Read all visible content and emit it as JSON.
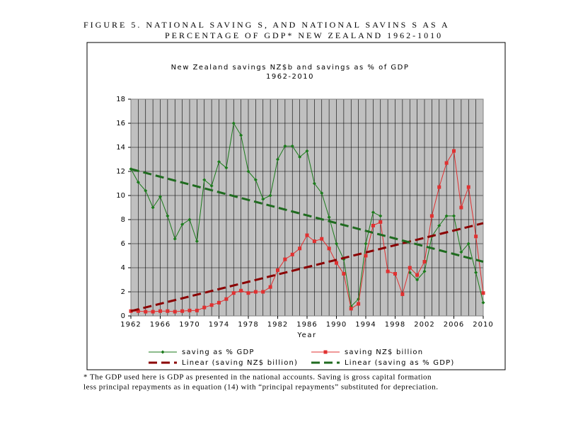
{
  "figure": {
    "caption": [
      "FIGURE 5.     NATIONAL SAVING S, AND NATIONAL SAVINS S AS A",
      "PERCENTAGE OF GDP* NEW ZEALAND 1962-1010"
    ],
    "footnote": [
      "* The GDP used here is GDP as presented in the national accounts. Saving is gross capital formation",
      "less principal repayments as in equation (14) with “principal repayments” substituted for depreciation."
    ]
  },
  "chart_data": {
    "type": "line",
    "title": [
      "New Zealand savings NZ$b and savings as % of GDP",
      "1962-2010"
    ],
    "x_label": "Year",
    "x": [
      1962,
      1963,
      1964,
      1965,
      1966,
      1967,
      1968,
      1969,
      1970,
      1971,
      1972,
      1973,
      1974,
      1975,
      1976,
      1977,
      1978,
      1979,
      1980,
      1981,
      1982,
      1983,
      1984,
      1985,
      1986,
      1987,
      1988,
      1989,
      1990,
      1991,
      1992,
      1993,
      1994,
      1995,
      1996,
      1997,
      1998,
      1999,
      2000,
      2001,
      2002,
      2003,
      2004,
      2005,
      2006,
      2007,
      2008,
      2009,
      2010
    ],
    "xlim": [
      1962,
      2010
    ],
    "xticks": [
      1962,
      1966,
      1970,
      1974,
      1978,
      1982,
      1986,
      1990,
      1994,
      1998,
      2002,
      2006,
      2010
    ],
    "ylim": [
      0,
      18
    ],
    "yticks": [
      0,
      2,
      4,
      6,
      8,
      10,
      12,
      14,
      16,
      18
    ],
    "grid": true,
    "series": [
      {
        "name": "saving as % GDP",
        "color": "#1a7a1a",
        "marker": "diamond",
        "values": [
          12.2,
          11.1,
          10.4,
          9.0,
          9.9,
          8.3,
          6.4,
          7.6,
          8.0,
          6.2,
          11.3,
          10.8,
          12.8,
          12.3,
          16.0,
          15.0,
          12.0,
          11.3,
          9.7,
          10.0,
          13.0,
          14.1,
          14.1,
          13.2,
          13.7,
          11.0,
          10.2,
          8.2,
          6.0,
          4.7,
          0.8,
          1.4,
          6.0,
          8.6,
          8.3,
          null,
          null,
          null,
          3.6,
          3.0,
          3.7,
          6.6,
          7.5,
          8.3,
          8.3,
          5.3,
          6.0,
          3.6,
          1.1
        ]
      },
      {
        "name": "saving NZ$ billion",
        "color": "#e03030",
        "marker": "square",
        "values": [
          0.4,
          0.4,
          0.35,
          0.35,
          0.4,
          0.4,
          0.35,
          0.4,
          0.45,
          0.45,
          0.7,
          0.9,
          1.1,
          1.4,
          1.9,
          2.1,
          1.9,
          2.0,
          2.0,
          2.4,
          3.8,
          4.7,
          5.1,
          5.6,
          6.7,
          6.2,
          6.4,
          5.6,
          4.4,
          3.5,
          0.6,
          1.0,
          5.0,
          7.5,
          7.8,
          3.7,
          3.5,
          1.8,
          4.0,
          3.4,
          4.5,
          8.3,
          10.7,
          12.7,
          13.7,
          9.0,
          10.7,
          6.6,
          1.9
        ]
      },
      {
        "name": "Linear (saving NZ$ billion)",
        "color": "#8b0000",
        "dashed": true,
        "x": [
          1962,
          2010
        ],
        "values": [
          0.4,
          7.7
        ]
      },
      {
        "name": "Linear (saving as % GDP)",
        "color": "#1f6b1f",
        "dashed": true,
        "x": [
          1962,
          2010
        ],
        "values": [
          12.2,
          4.5
        ]
      }
    ]
  }
}
